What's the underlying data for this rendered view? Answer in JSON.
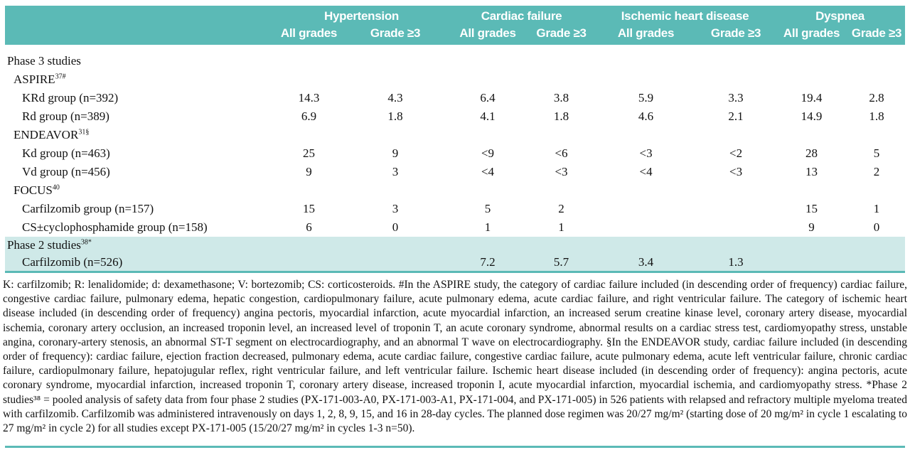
{
  "table": {
    "groups": [
      {
        "label": "Hypertension"
      },
      {
        "label": "Cardiac failure"
      },
      {
        "label": "Ischemic heart disease"
      },
      {
        "label": "Dyspnea"
      }
    ],
    "sub_headers": [
      "All grades",
      "Grade ≥3",
      "All grades",
      "Grade ≥3",
      "All grades",
      "Grade ≥3",
      "All grades",
      "Grade ≥3"
    ],
    "rows": [
      {
        "label": "Phase 3 studies",
        "sup": "",
        "indent": 0,
        "highlight": false,
        "values": [
          "",
          "",
          "",
          "",
          "",
          "",
          "",
          ""
        ]
      },
      {
        "label": "ASPIRE",
        "sup": "37#",
        "indent": 1,
        "highlight": false,
        "values": [
          "",
          "",
          "",
          "",
          "",
          "",
          "",
          ""
        ]
      },
      {
        "label": "KRd group (n=392)",
        "sup": "",
        "indent": 2,
        "highlight": false,
        "values": [
          "14.3",
          "4.3",
          "6.4",
          "3.8",
          "5.9",
          "3.3",
          "19.4",
          "2.8"
        ]
      },
      {
        "label": "Rd group (n=389)",
        "sup": "",
        "indent": 2,
        "highlight": false,
        "values": [
          "6.9",
          "1.8",
          "4.1",
          "1.8",
          "4.6",
          "2.1",
          "14.9",
          "1.8"
        ]
      },
      {
        "label": "ENDEAVOR",
        "sup": "31§",
        "indent": 1,
        "highlight": false,
        "values": [
          "",
          "",
          "",
          "",
          "",
          "",
          "",
          ""
        ]
      },
      {
        "label": "Kd group (n=463)",
        "sup": "",
        "indent": 2,
        "highlight": false,
        "values": [
          "25",
          "9",
          "<9",
          "<6",
          "<3",
          "<2",
          "28",
          "5"
        ]
      },
      {
        "label": "Vd group (n=456)",
        "sup": "",
        "indent": 2,
        "highlight": false,
        "values": [
          "9",
          "3",
          "<4",
          "<3",
          "<4",
          "<3",
          "13",
          "2"
        ]
      },
      {
        "label": "FOCUS",
        "sup": "40",
        "indent": 1,
        "highlight": false,
        "values": [
          "",
          "",
          "",
          "",
          "",
          "",
          "",
          ""
        ]
      },
      {
        "label": "Carfilzomib group (n=157)",
        "sup": "",
        "indent": 2,
        "highlight": false,
        "values": [
          "15",
          "3",
          "5",
          "2",
          "",
          "",
          "15",
          "1"
        ]
      },
      {
        "label": "CS±cyclophosphamide group (n=158)",
        "sup": "",
        "indent": 2,
        "highlight": false,
        "values": [
          "6",
          "0",
          "1",
          "1",
          "",
          "",
          "9",
          "0"
        ]
      },
      {
        "label": "Phase 2 studies",
        "sup": "38*",
        "indent": 0,
        "highlight": true,
        "values": [
          "",
          "",
          "",
          "",
          "",
          "",
          "",
          ""
        ]
      },
      {
        "label": "Carfilzomib (n=526)",
        "sup": "",
        "indent": 2,
        "highlight": true,
        "values": [
          "",
          "",
          "7.2",
          "5.7",
          "3.4",
          "1.3",
          "",
          ""
        ]
      }
    ]
  },
  "footnote": {
    "text": "K: carfilzomib; R: lenalidomide; d: dexamethasone; V: bortezomib; CS: corticosteroids. #In the ASPIRE study, the category of cardiac failure included (in descending order of frequency) cardiac failure, congestive cardiac failure, pulmonary edema, hepatic congestion, cardiopulmonary failure, acute pulmonary edema, acute cardiac failure, and right ventricular failure. The category of ischemic heart disease included (in descending order of frequency) angina pectoris, myocardial infarction, acute myocardial infarction, an increased serum creatine kinase level, coronary artery disease, myocardial ischemia, coronary artery occlusion, an increased troponin level, an increased level of troponin T, an acute coronary syndrome, abnormal results on a cardiac stress test, cardiomyopathy stress, unstable angina, coronary-artery stenosis, an abnormal ST-T segment on electrocardiography, and an abnormal T wave on electrocardiography. §In the ENDEAVOR study, cardiac failure included (in descending order of frequency): cardiac failure, ejection fraction decreased, pulmonary edema, acute cardiac failure, congestive cardiac failure, acute pulmonary edema, acute left ventricular failure, chronic cardiac failure, cardiopulmonary failure, hepatojugular reflex, right ventricular failure, and left ventricular failure. Ischemic heart disease included (in descending order of frequency): angina pectoris, acute coronary syndrome, myocardial infarction, increased troponin T, coronary artery disease, increased troponin I, acute myocardial infarction, myocardial ischemia, and cardiomyopathy stress. *Phase 2 studies³⁸ = pooled analysis of safety data from four phase 2 studies (PX-171-003-A0, PX-171-003-A1, PX-171-004, and PX-171-005) in 526 patients with relapsed and refractory multiple myeloma treated with carfilzomib. Carfilzomib was administered intravenously on days 1, 2, 8, 9, 15, and 16 in 28-day cycles. The planned dose regimen was 20/27 mg/m² (starting dose of 20 mg/m² in cycle 1 escalating to 27 mg/m² in cycle 2) for all studies except PX-171-005 (15/20/27 mg/m² in cycles 1-3 n=50)."
  },
  "colors": {
    "header_teal": "#5bbab6",
    "phase2_band": "#cfe9e8"
  }
}
